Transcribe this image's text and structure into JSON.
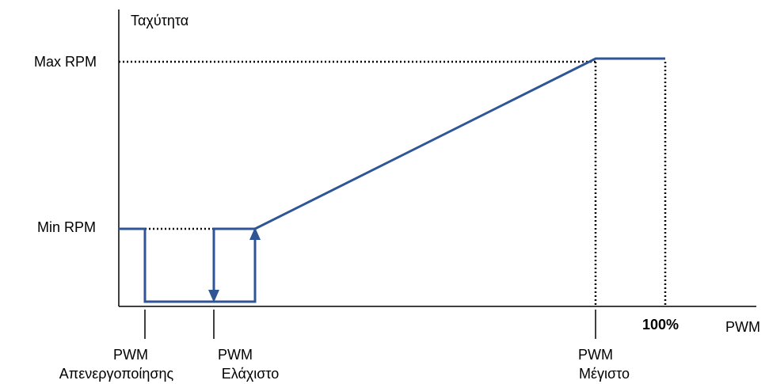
{
  "axes": {
    "y_label": "Ταχύτητα",
    "x_label": "PWM"
  },
  "levels": {
    "max_rpm": "Max RPM",
    "min_rpm": "Min RPM"
  },
  "x_markers": {
    "hundred_percent": "100%",
    "pwm_off_line1": "PWM",
    "pwm_off_line2": "Απενεργοποίησης",
    "pwm_min_line1": "PWM",
    "pwm_min_line2": "Ελάχιστο",
    "pwm_max_line1": "PWM",
    "pwm_max_line2": "Μέγιστο"
  },
  "colors": {
    "curve": "#2f5597",
    "axis": "#000000",
    "guide": "#000000"
  }
}
